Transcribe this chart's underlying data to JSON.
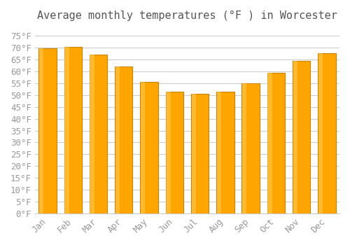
{
  "title": "Average monthly temperatures (°F ) in Worcester",
  "months": [
    "Jan",
    "Feb",
    "Mar",
    "Apr",
    "May",
    "Jun",
    "Jul",
    "Aug",
    "Sep",
    "Oct",
    "Nov",
    "Dec"
  ],
  "values": [
    69.8,
    70.3,
    67.0,
    62.0,
    55.5,
    51.5,
    50.5,
    51.5,
    54.8,
    59.5,
    64.5,
    67.5
  ],
  "bar_color": "#FFA500",
  "bar_edge_color": "#CC8400",
  "background_color": "#FFFFFF",
  "grid_color": "#CCCCCC",
  "text_color": "#999999",
  "title_color": "#555555",
  "ylim": [
    0,
    78
  ],
  "yticks": [
    0,
    5,
    10,
    15,
    20,
    25,
    30,
    35,
    40,
    45,
    50,
    55,
    60,
    65,
    70,
    75
  ],
  "title_fontsize": 11,
  "tick_fontsize": 9,
  "font_family": "monospace"
}
